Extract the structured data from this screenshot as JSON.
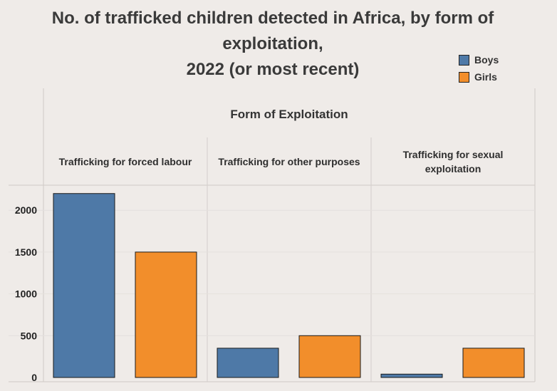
{
  "chart_data": {
    "type": "bar",
    "title": [
      "No. of trafficked children detected in Africa, by form of",
      "exploitation,",
      "2022 (or most recent)"
    ],
    "group_header": "Form of Exploitation",
    "categories": [
      [
        "Trafficking for forced labour"
      ],
      [
        "Trafficking for other purposes"
      ],
      [
        "Trafficking for sexual",
        "exploitation"
      ]
    ],
    "series": [
      {
        "name": "Boys",
        "color": "#4e79a7",
        "values": [
          2200,
          350,
          40
        ]
      },
      {
        "name": "Girls",
        "color": "#f28e2b",
        "values": [
          1500,
          500,
          350
        ]
      }
    ],
    "ylim": [
      0,
      2300
    ],
    "yticks": [
      0,
      500,
      1000,
      1500,
      2000
    ],
    "grid": true,
    "legend": "top-right"
  }
}
